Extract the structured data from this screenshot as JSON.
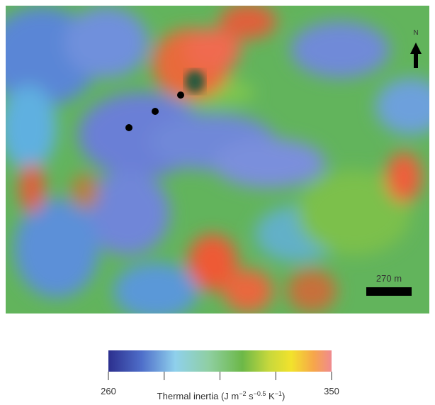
{
  "map": {
    "north_label": "N",
    "scale_label": "270 m"
  },
  "colorbar": {
    "range": [
      260,
      350
    ],
    "ticks": [
      260,
      {
        "value": 282.5,
        "label": null
      },
      {
        "value": 305,
        "label": null
      },
      {
        "value": 327.5,
        "label": null
      },
      350
    ],
    "title_parts": [
      "Thermal inertia (J m",
      "−2",
      " s",
      "−0.5",
      " K",
      "−1",
      ")"
    ]
  }
}
